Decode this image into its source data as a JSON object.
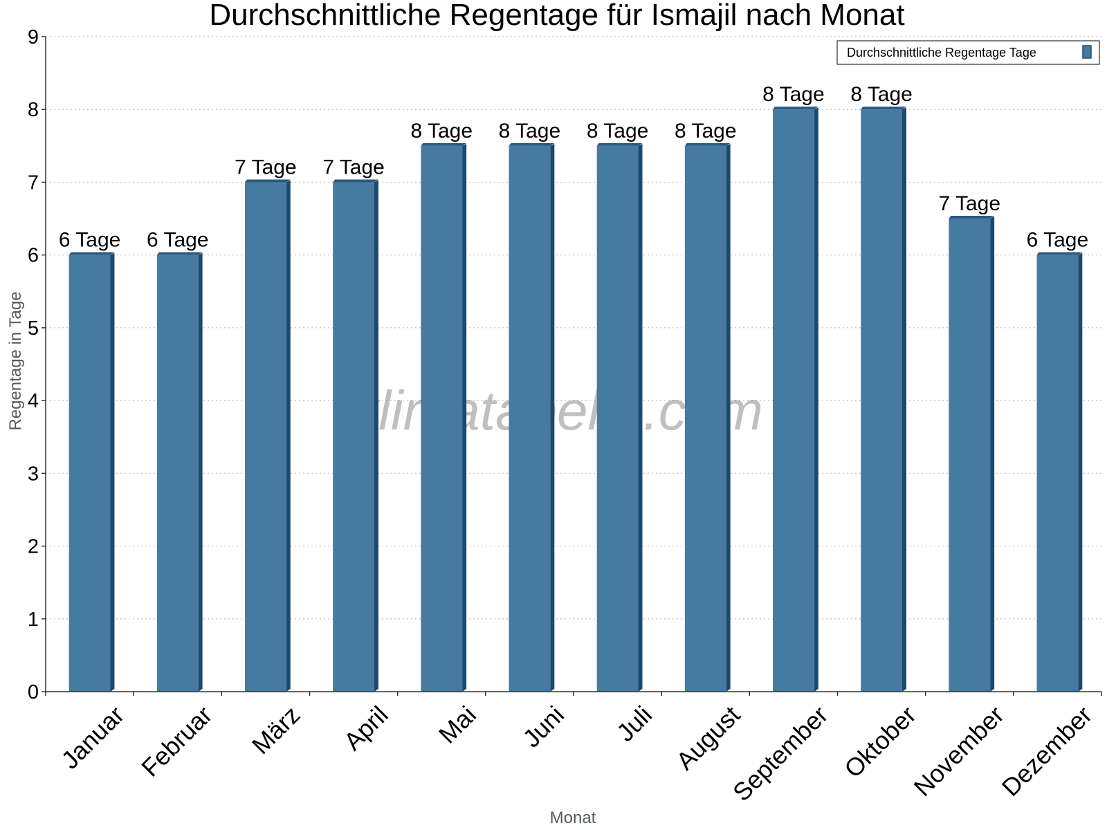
{
  "chart_data": {
    "type": "bar",
    "title": "Durchschnittliche Regentage für Ismajil nach Monat",
    "xlabel": "Monat",
    "ylabel": "Regentage in Tage",
    "ylim": [
      0,
      9
    ],
    "y_ticks": [
      "0",
      "1",
      "2",
      "3",
      "4",
      "5",
      "6",
      "7",
      "8",
      "9"
    ],
    "grid": "horizontal dotted",
    "legend_position": "top-right",
    "categories": [
      "Januar",
      "Februar",
      "März",
      "April",
      "Mai",
      "Juni",
      "Juli",
      "August",
      "September",
      "Oktober",
      "November",
      "Dezember"
    ],
    "series": [
      {
        "name": "Durchschnittliche Regentage Tage",
        "color": "#467aa0",
        "values": [
          6,
          6,
          7,
          7,
          7.5,
          7.5,
          7.5,
          7.5,
          8,
          8,
          6.5,
          6
        ],
        "labels": [
          "6 Tage",
          "6 Tage",
          "7 Tage",
          "7 Tage",
          "8 Tage",
          "8 Tage",
          "8 Tage",
          "8 Tage",
          "8 Tage",
          "8 Tage",
          "7 Tage",
          "6 Tage"
        ]
      }
    ]
  },
  "watermark": "klimatabelle.com",
  "colors": {
    "bar_front": "#467aa0",
    "bar_side": "#1d4a6b",
    "bar_top": "#2a5a80",
    "grid": "#c0c0c0",
    "axis": "#333333"
  }
}
